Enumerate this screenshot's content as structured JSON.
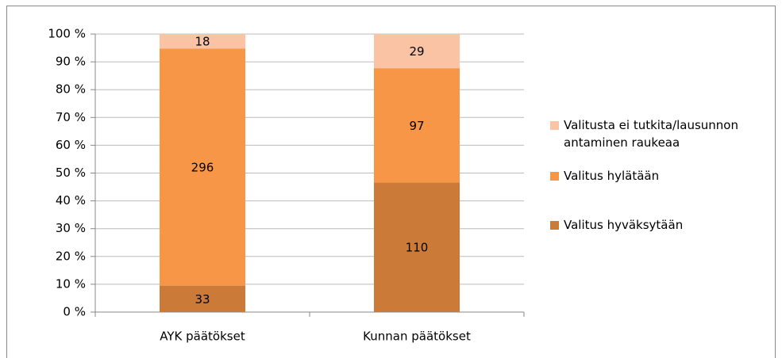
{
  "chart_data": {
    "type": "stacked_bar_percent",
    "categories": [
      "AYK päätökset",
      "Kunnan päätökset"
    ],
    "series": [
      {
        "name": "Valitus hyväksytään",
        "color": "#cc7a38",
        "values": [
          33,
          110
        ]
      },
      {
        "name": "Valitus hylätään",
        "color": "#f79646",
        "values": [
          296,
          97
        ]
      },
      {
        "name": "Valitusta ei tutkita/lausunnon antaminen raukeaa",
        "color": "#fac3a4",
        "values": [
          18,
          29
        ]
      }
    ],
    "ylim": [
      0,
      100
    ],
    "yticks": [
      {
        "value": 0,
        "label": "0 %"
      },
      {
        "value": 10,
        "label": "10 %"
      },
      {
        "value": 20,
        "label": "20 %"
      },
      {
        "value": 30,
        "label": "30 %"
      },
      {
        "value": 40,
        "label": "40 %"
      },
      {
        "value": 50,
        "label": "50 %"
      },
      {
        "value": 60,
        "label": "60 %"
      },
      {
        "value": 70,
        "label": "70 %"
      },
      {
        "value": 80,
        "label": "80 %"
      },
      {
        "value": 90,
        "label": "90 %"
      },
      {
        "value": 100,
        "label": "100 %"
      }
    ],
    "grid": true,
    "legend": "right"
  }
}
